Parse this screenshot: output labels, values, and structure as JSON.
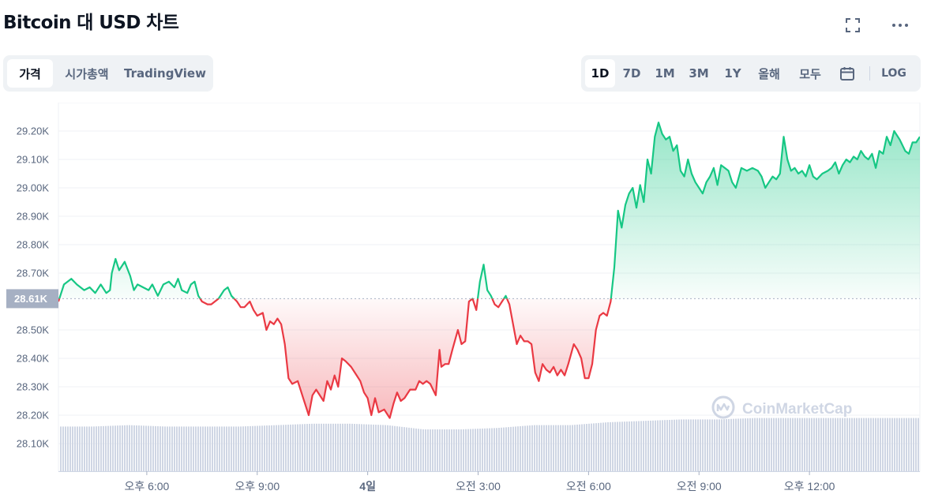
{
  "header": {
    "title": "Bitcoin 대 USD 차트",
    "fullscreen_icon": "fullscreen-icon",
    "more_icon": "more-horizontal-icon"
  },
  "view_tabs": [
    {
      "label": "가격",
      "active": true
    },
    {
      "label": "시가총액",
      "active": false
    },
    {
      "label": "TradingView",
      "active": false
    }
  ],
  "range_tabs": [
    {
      "label": "1D",
      "active": true
    },
    {
      "label": "7D",
      "active": false
    },
    {
      "label": "1M",
      "active": false
    },
    {
      "label": "3M",
      "active": false
    },
    {
      "label": "1Y",
      "active": false
    },
    {
      "label": "올해",
      "active": false
    },
    {
      "label": "모두",
      "active": false
    }
  ],
  "calendar_icon": "calendar-icon",
  "log_label": "LOG",
  "watermark": "CoinMarketCap",
  "colors": {
    "up": "#16c784",
    "down": "#ea3943",
    "volume": "#cfd6e4",
    "baseline_label_bg": "#a6b0c3"
  },
  "chart_data": {
    "type": "area",
    "baseline": 28.61,
    "baseline_label": "28.61K",
    "ylim": [
      28.0,
      29.3
    ],
    "y_ticks": [
      {
        "value": 29.2,
        "label": "29.20K"
      },
      {
        "value": 29.1,
        "label": "29.10K"
      },
      {
        "value": 29.0,
        "label": "29.00K"
      },
      {
        "value": 28.9,
        "label": "28.90K"
      },
      {
        "value": 28.8,
        "label": "28.80K"
      },
      {
        "value": 28.7,
        "label": "28.70K"
      },
      {
        "value": 28.5,
        "label": "28.50K"
      },
      {
        "value": 28.4,
        "label": "28.40K"
      },
      {
        "value": 28.3,
        "label": "28.30K"
      },
      {
        "value": 28.2,
        "label": "28.20K"
      },
      {
        "value": 28.1,
        "label": "28.10K"
      }
    ],
    "xlim": [
      15.6,
      39.0
    ],
    "x_ticks": [
      {
        "value": 18,
        "label": "오후 6:00",
        "bold": false
      },
      {
        "value": 21,
        "label": "오후 9:00",
        "bold": false
      },
      {
        "value": 24,
        "label": "4일",
        "bold": true
      },
      {
        "value": 27,
        "label": "오전 3:00",
        "bold": false
      },
      {
        "value": 30,
        "label": "오전 6:00",
        "bold": false
      },
      {
        "value": 33,
        "label": "오전 9:00",
        "bold": false
      },
      {
        "value": 36,
        "label": "오후 12:00",
        "bold": false
      }
    ],
    "x_unit": "hours since start of day 3",
    "price": [
      [
        15.6,
        28.6
      ],
      [
        15.75,
        28.66
      ],
      [
        15.95,
        28.68
      ],
      [
        16.1,
        28.66
      ],
      [
        16.3,
        28.64
      ],
      [
        16.45,
        28.65
      ],
      [
        16.6,
        28.63
      ],
      [
        16.75,
        28.66
      ],
      [
        16.9,
        28.63
      ],
      [
        17.0,
        28.64
      ],
      [
        17.05,
        28.7
      ],
      [
        17.15,
        28.75
      ],
      [
        17.25,
        28.71
      ],
      [
        17.4,
        28.74
      ],
      [
        17.55,
        28.69
      ],
      [
        17.65,
        28.64
      ],
      [
        17.75,
        28.66
      ],
      [
        17.9,
        28.65
      ],
      [
        18.05,
        28.64
      ],
      [
        18.15,
        28.66
      ],
      [
        18.3,
        28.62
      ],
      [
        18.45,
        28.66
      ],
      [
        18.6,
        28.67
      ],
      [
        18.75,
        28.65
      ],
      [
        18.85,
        28.68
      ],
      [
        18.95,
        28.64
      ],
      [
        19.1,
        28.63
      ],
      [
        19.2,
        28.66
      ],
      [
        19.3,
        28.67
      ],
      [
        19.4,
        28.62
      ],
      [
        19.5,
        28.6
      ],
      [
        19.65,
        28.59
      ],
      [
        19.75,
        28.59
      ],
      [
        19.95,
        28.61
      ],
      [
        20.1,
        28.64
      ],
      [
        20.2,
        28.65
      ],
      [
        20.3,
        28.62
      ],
      [
        20.45,
        28.6
      ],
      [
        20.55,
        28.58
      ],
      [
        20.65,
        28.58
      ],
      [
        20.8,
        28.6
      ],
      [
        20.9,
        28.57
      ],
      [
        21.0,
        28.55
      ],
      [
        21.15,
        28.56
      ],
      [
        21.25,
        28.5
      ],
      [
        21.35,
        28.53
      ],
      [
        21.45,
        28.52
      ],
      [
        21.55,
        28.54
      ],
      [
        21.65,
        28.52
      ],
      [
        21.75,
        28.45
      ],
      [
        21.85,
        28.33
      ],
      [
        21.95,
        28.31
      ],
      [
        22.1,
        28.32
      ],
      [
        22.25,
        28.26
      ],
      [
        22.4,
        28.2
      ],
      [
        22.5,
        28.27
      ],
      [
        22.6,
        28.29
      ],
      [
        22.8,
        28.25
      ],
      [
        22.9,
        28.32
      ],
      [
        23.0,
        28.29
      ],
      [
        23.1,
        28.34
      ],
      [
        23.2,
        28.3
      ],
      [
        23.3,
        28.4
      ],
      [
        23.4,
        28.39
      ],
      [
        23.55,
        28.37
      ],
      [
        23.7,
        28.34
      ],
      [
        23.8,
        28.32
      ],
      [
        23.9,
        28.28
      ],
      [
        24.0,
        28.26
      ],
      [
        24.1,
        28.2
      ],
      [
        24.2,
        28.26
      ],
      [
        24.3,
        28.21
      ],
      [
        24.45,
        28.22
      ],
      [
        24.6,
        28.19
      ],
      [
        24.7,
        28.24
      ],
      [
        24.8,
        28.28
      ],
      [
        24.9,
        28.25
      ],
      [
        25.0,
        28.26
      ],
      [
        25.15,
        28.29
      ],
      [
        25.3,
        28.29
      ],
      [
        25.4,
        28.32
      ],
      [
        25.5,
        28.31
      ],
      [
        25.6,
        28.32
      ],
      [
        25.7,
        28.31
      ],
      [
        25.85,
        28.27
      ],
      [
        25.95,
        28.43
      ],
      [
        26.0,
        28.37
      ],
      [
        26.1,
        28.38
      ],
      [
        26.2,
        28.38
      ],
      [
        26.3,
        28.43
      ],
      [
        26.45,
        28.5
      ],
      [
        26.55,
        28.45
      ],
      [
        26.65,
        28.46
      ],
      [
        26.75,
        28.6
      ],
      [
        26.85,
        28.61
      ],
      [
        26.95,
        28.57
      ],
      [
        27.05,
        28.67
      ],
      [
        27.15,
        28.73
      ],
      [
        27.25,
        28.64
      ],
      [
        27.35,
        28.62
      ],
      [
        27.45,
        28.59
      ],
      [
        27.55,
        28.58
      ],
      [
        27.65,
        28.6
      ],
      [
        27.75,
        28.62
      ],
      [
        27.85,
        28.59
      ],
      [
        27.95,
        28.52
      ],
      [
        28.05,
        28.45
      ],
      [
        28.15,
        28.48
      ],
      [
        28.25,
        28.46
      ],
      [
        28.35,
        28.46
      ],
      [
        28.45,
        28.45
      ],
      [
        28.55,
        28.35
      ],
      [
        28.65,
        28.32
      ],
      [
        28.75,
        28.38
      ],
      [
        28.85,
        28.36
      ],
      [
        28.95,
        28.35
      ],
      [
        29.05,
        28.37
      ],
      [
        29.15,
        28.34
      ],
      [
        29.25,
        28.36
      ],
      [
        29.35,
        28.34
      ],
      [
        29.45,
        28.38
      ],
      [
        29.6,
        28.45
      ],
      [
        29.7,
        28.43
      ],
      [
        29.8,
        28.4
      ],
      [
        29.9,
        28.33
      ],
      [
        30.0,
        28.33
      ],
      [
        30.1,
        28.38
      ],
      [
        30.2,
        28.5
      ],
      [
        30.3,
        28.55
      ],
      [
        30.4,
        28.56
      ],
      [
        30.5,
        28.55
      ],
      [
        30.6,
        28.6
      ],
      [
        30.7,
        28.72
      ],
      [
        30.8,
        28.92
      ],
      [
        30.9,
        28.86
      ],
      [
        31.0,
        28.94
      ],
      [
        31.1,
        28.98
      ],
      [
        31.2,
        29.0
      ],
      [
        31.3,
        28.93
      ],
      [
        31.4,
        29.01
      ],
      [
        31.5,
        28.95
      ],
      [
        31.6,
        29.1
      ],
      [
        31.7,
        29.05
      ],
      [
        31.8,
        29.18
      ],
      [
        31.9,
        29.23
      ],
      [
        32.0,
        29.19
      ],
      [
        32.1,
        29.17
      ],
      [
        32.2,
        29.18
      ],
      [
        32.3,
        29.13
      ],
      [
        32.4,
        29.15
      ],
      [
        32.5,
        29.06
      ],
      [
        32.6,
        29.04
      ],
      [
        32.7,
        29.1
      ],
      [
        32.8,
        29.05
      ],
      [
        32.9,
        29.02
      ],
      [
        33.0,
        29.0
      ],
      [
        33.1,
        28.98
      ],
      [
        33.2,
        29.02
      ],
      [
        33.3,
        29.04
      ],
      [
        33.4,
        29.07
      ],
      [
        33.5,
        29.01
      ],
      [
        33.6,
        29.08
      ],
      [
        33.7,
        29.07
      ],
      [
        33.8,
        29.06
      ],
      [
        33.9,
        29.02
      ],
      [
        34.0,
        29.0
      ],
      [
        34.15,
        29.07
      ],
      [
        34.3,
        29.06
      ],
      [
        34.45,
        29.07
      ],
      [
        34.6,
        29.06
      ],
      [
        34.7,
        29.04
      ],
      [
        34.8,
        29.0
      ],
      [
        34.9,
        29.02
      ],
      [
        35.0,
        29.04
      ],
      [
        35.1,
        29.03
      ],
      [
        35.2,
        29.05
      ],
      [
        35.3,
        29.18
      ],
      [
        35.4,
        29.1
      ],
      [
        35.5,
        29.06
      ],
      [
        35.6,
        29.07
      ],
      [
        35.7,
        29.05
      ],
      [
        35.8,
        29.06
      ],
      [
        35.9,
        29.04
      ],
      [
        36.0,
        29.08
      ],
      [
        36.1,
        29.04
      ],
      [
        36.2,
        29.03
      ],
      [
        36.35,
        29.05
      ],
      [
        36.5,
        29.06
      ],
      [
        36.6,
        29.07
      ],
      [
        36.7,
        29.09
      ],
      [
        36.8,
        29.05
      ],
      [
        36.9,
        29.08
      ],
      [
        37.0,
        29.1
      ],
      [
        37.1,
        29.09
      ],
      [
        37.2,
        29.11
      ],
      [
        37.3,
        29.1
      ],
      [
        37.4,
        29.13
      ],
      [
        37.5,
        29.11
      ],
      [
        37.6,
        29.1
      ],
      [
        37.7,
        29.12
      ],
      [
        37.8,
        29.07
      ],
      [
        37.9,
        29.13
      ],
      [
        38.0,
        29.12
      ],
      [
        38.1,
        29.18
      ],
      [
        38.2,
        29.15
      ],
      [
        38.3,
        29.2
      ],
      [
        38.45,
        29.17
      ],
      [
        38.6,
        29.13
      ],
      [
        38.7,
        29.12
      ],
      [
        38.8,
        29.16
      ],
      [
        38.9,
        29.16
      ],
      [
        39.0,
        29.18
      ]
    ],
    "volume": [
      [
        15.6,
        28.16
      ],
      [
        16.5,
        28.16
      ],
      [
        17.5,
        28.165
      ],
      [
        18.5,
        28.16
      ],
      [
        19.5,
        28.16
      ],
      [
        20.5,
        28.16
      ],
      [
        21.5,
        28.165
      ],
      [
        22.5,
        28.17
      ],
      [
        23.5,
        28.17
      ],
      [
        24.5,
        28.165
      ],
      [
        25.5,
        28.15
      ],
      [
        26.0,
        28.15
      ],
      [
        26.5,
        28.15
      ],
      [
        27.5,
        28.155
      ],
      [
        28.5,
        28.165
      ],
      [
        29.5,
        28.165
      ],
      [
        30.5,
        28.175
      ],
      [
        31.5,
        28.18
      ],
      [
        32.5,
        28.185
      ],
      [
        33.5,
        28.185
      ],
      [
        34.5,
        28.19
      ],
      [
        35.5,
        28.19
      ],
      [
        36.5,
        28.19
      ],
      [
        37.5,
        28.19
      ],
      [
        38.5,
        28.19
      ],
      [
        39.0,
        28.19
      ]
    ]
  }
}
